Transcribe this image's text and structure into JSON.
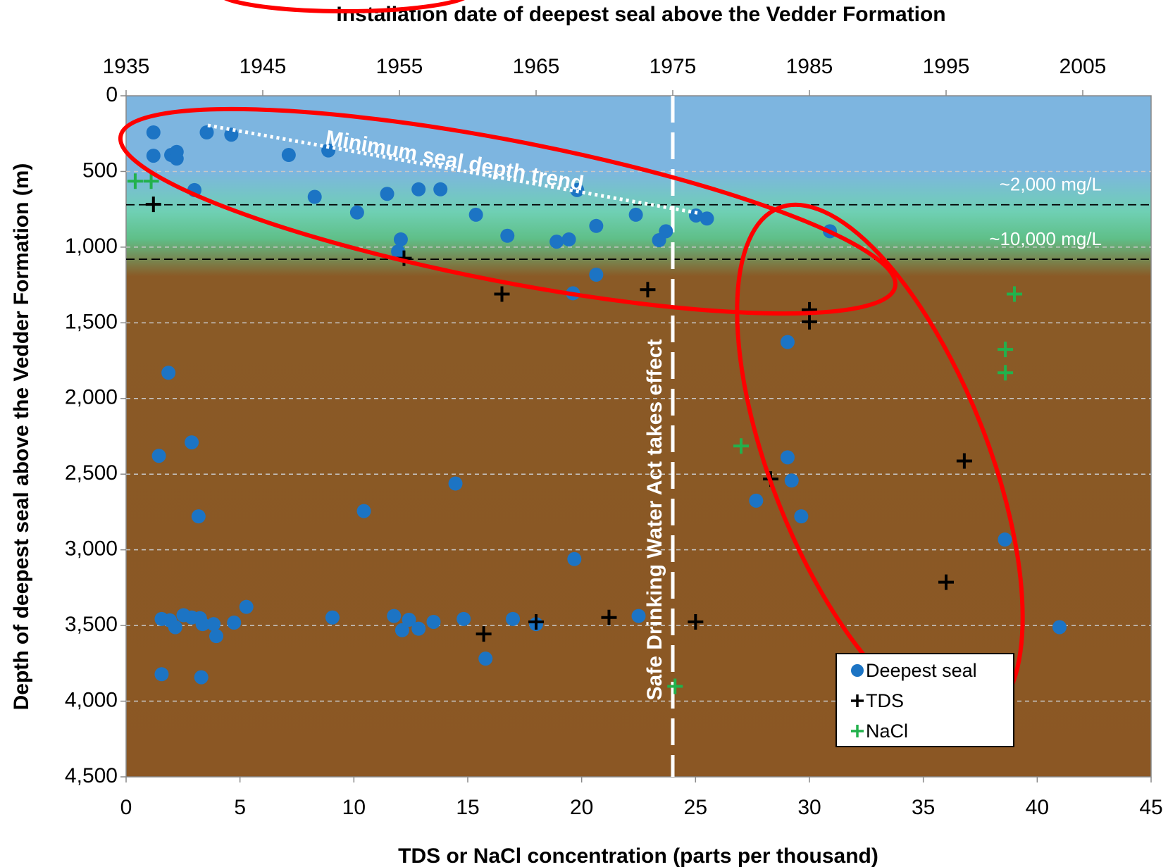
{
  "chart_data": {
    "type": "scatter",
    "title": "Installation date of deepest seal above the Vedder Formation",
    "xlabel": "TDS or NaCl concentration (parts per thousand)",
    "ylabel": "Depth of deepest seal above the Vedder Formation (m)",
    "xlim": [
      0,
      45
    ],
    "xticks": [
      0,
      5,
      10,
      15,
      20,
      25,
      30,
      35,
      40,
      45
    ],
    "x2lim": [
      1935,
      2010
    ],
    "x2ticks": [
      1935,
      1945,
      1955,
      1965,
      1975,
      1985,
      1995,
      2005
    ],
    "ylim": [
      0,
      4500
    ],
    "yticks": [
      0,
      500,
      {
        "value": 1000,
        "label": "1,000"
      },
      {
        "value": 1500,
        "label": "1,500"
      },
      {
        "value": 2000,
        "label": "2,000"
      },
      {
        "value": 2500,
        "label": "2,500"
      },
      {
        "value": 3000,
        "label": "3,000"
      },
      {
        "value": 3500,
        "label": "3,500"
      },
      {
        "value": 4000,
        "label": "4,000"
      },
      {
        "value": 4500,
        "label": "4,500"
      }
    ],
    "y_inverted": true,
    "grid": true,
    "legend": "lower right",
    "series": [
      {
        "name": "Deepest seal",
        "color": "#1c74c4",
        "marker": "circle",
        "axis": "x2",
        "x": [
          1937.0,
          1937.0,
          1938.3,
          1938.7,
          1938.7,
          1940.9,
          1942.7,
          1946.9,
          1949.8,
          1940.0,
          1948.8,
          1951.9,
          1954.1,
          1956.4,
          1958.0,
          1960.6,
          1962.9,
          1966.5,
          1967.4,
          1968.0,
          1969.4,
          1972.3,
          1974.0,
          1974.5,
          1976.7,
          1977.5,
          1986.5,
          1955.1,
          1954.9,
          1967.7,
          1969.4,
          1983.4,
          1938.1,
          1937.4,
          1939.8,
          1940.3,
          1959.1,
          1952.4,
          1983.4,
          1983.7,
          1981.1,
          1984.4,
          1999.3,
          1967.8,
          2003.3,
          1937.6,
          1938.2,
          1938.6,
          1939.2,
          1939.8,
          1940.4,
          1940.6,
          1941.4,
          1941.6,
          1942.9,
          1943.8,
          1950.1,
          1954.6,
          1955.2,
          1955.7,
          1956.4,
          1957.5,
          1959.7,
          1961.3,
          1963.3,
          1965.0,
          1972.5,
          1937.6,
          1940.5
        ],
        "values": [
          242,
          396,
          391,
          371,
          415,
          242,
          257,
          391,
          361,
          623,
          668,
          771,
          648,
          618,
          618,
          786,
          925,
          964,
          949,
          623,
          860,
          786,
          954,
          895,
          791,
          811,
          895,
          949,
          1029,
          1305,
          1182,
          1627,
          1830,
          2379,
          2290,
          2779,
          2562,
          2744,
          2389,
          2542,
          2675,
          2779,
          2932,
          3061,
          3511,
          3457,
          3466,
          3511,
          3432,
          3447,
          3452,
          3491,
          3491,
          3570,
          3481,
          3377,
          3447,
          3437,
          3531,
          3462,
          3521,
          3476,
          3457,
          3719,
          3457,
          3491,
          3437,
          3822,
          3842
        ]
      },
      {
        "name": "TDS",
        "color": "#000000",
        "marker": "plus",
        "x": [
          1.2,
          12.2,
          16.5,
          22.9,
          30.0,
          30.0,
          28.3,
          36.8,
          36.0,
          15.7,
          18.0,
          21.2,
          25.0
        ],
        "values": [
          717,
          1073,
          1310,
          1281,
          1414,
          1493,
          2532,
          2413,
          3214,
          3556,
          3476,
          3447,
          3476
        ]
      },
      {
        "name": "NaCl",
        "color": "#22b14c",
        "marker": "plus",
        "x": [
          0.4,
          1.1,
          27.0,
          39.0,
          38.6,
          38.6,
          24.1
        ],
        "values": [
          564,
          564,
          2314,
          1310,
          1676,
          1830,
          3902
        ]
      }
    ],
    "thresholds": [
      {
        "text": "~2,000 mg/L",
        "depth": 720
      },
      {
        "text": "~10,000 mg/L",
        "depth": 1080
      }
    ],
    "event": {
      "text": "Safe Drinking Water Act takes effect",
      "year": 1975
    },
    "trend_label": "Minimum seal depth trend"
  }
}
